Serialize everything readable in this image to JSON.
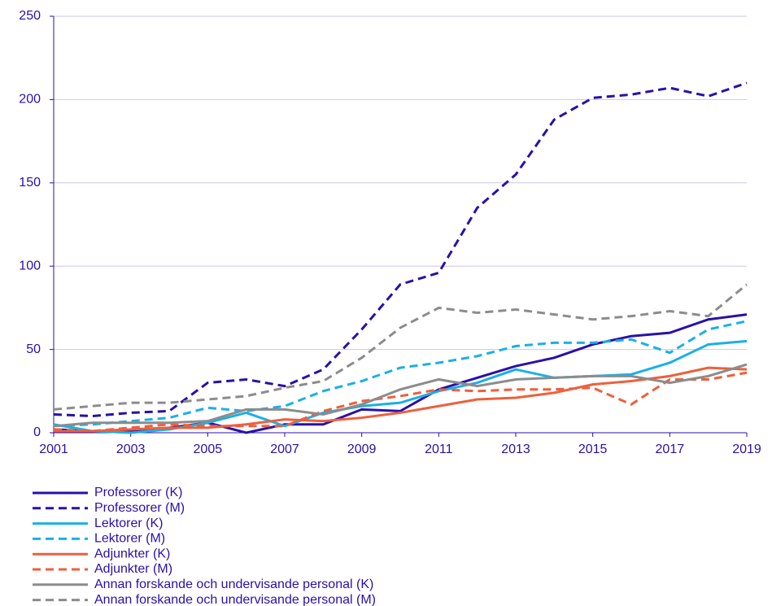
{
  "chart_data": {
    "type": "line",
    "x": [
      2001,
      2002,
      2003,
      2004,
      2005,
      2006,
      2007,
      2008,
      2009,
      2010,
      2011,
      2012,
      2013,
      2014,
      2015,
      2016,
      2017,
      2018,
      2019
    ],
    "xlim": [
      2001,
      2019
    ],
    "xticks": [
      2001,
      2003,
      2005,
      2007,
      2009,
      2011,
      2013,
      2015,
      2017,
      2019
    ],
    "ylim": [
      0,
      250
    ],
    "yticks": [
      0,
      50,
      100,
      150,
      200,
      250
    ],
    "grid": true,
    "legend": "bottom",
    "series": [
      {
        "name": "Professorer (K)",
        "color": "#2a10a8",
        "dashed": false,
        "values": [
          2,
          1,
          1,
          3,
          6,
          0,
          5,
          5,
          14,
          13,
          26,
          33,
          40,
          45,
          53,
          58,
          60,
          68,
          71
        ]
      },
      {
        "name": "Professorer (M)",
        "color": "#2a10a8",
        "dashed": true,
        "values": [
          11,
          10,
          12,
          13,
          30,
          32,
          28,
          38,
          62,
          89,
          96,
          135,
          155,
          188,
          201,
          203,
          207,
          202,
          210
        ]
      },
      {
        "name": "Lektorer (K)",
        "color": "#1ab0e6",
        "dashed": false,
        "values": [
          5,
          1,
          0,
          2,
          6,
          12,
          4,
          12,
          16,
          18,
          25,
          30,
          38,
          33,
          34,
          35,
          42,
          53,
          55
        ]
      },
      {
        "name": "Lektorer (M)",
        "color": "#1ab0e6",
        "dashed": true,
        "values": [
          4,
          5,
          7,
          9,
          15,
          13,
          16,
          25,
          31,
          39,
          42,
          46,
          52,
          54,
          54,
          56,
          48,
          62,
          67
        ]
      },
      {
        "name": "Adjunkter (K)",
        "color": "#ee5f3c",
        "dashed": false,
        "values": [
          1,
          1,
          2,
          3,
          3,
          5,
          8,
          7,
          9,
          12,
          16,
          20,
          21,
          24,
          29,
          31,
          34,
          39,
          38
        ]
      },
      {
        "name": "Adjunkter (M)",
        "color": "#ee5f3c",
        "dashed": true,
        "values": [
          2,
          1,
          3,
          5,
          4,
          4,
          4,
          13,
          19,
          22,
          26,
          25,
          26,
          26,
          27,
          17,
          32,
          32,
          36
        ]
      },
      {
        "name": "Annan forskande och undervisande personal (K)",
        "color": "#8c8c8c",
        "dashed": false,
        "values": [
          4,
          6,
          6,
          6,
          7,
          14,
          14,
          11,
          17,
          26,
          32,
          28,
          32,
          33,
          34,
          34,
          30,
          34,
          41
        ]
      },
      {
        "name": "Annan forskande och undervisande personal (M)",
        "color": "#8c8c8c",
        "dashed": true,
        "values": [
          14,
          16,
          18,
          18,
          20,
          22,
          27,
          31,
          45,
          63,
          75,
          72,
          74,
          71,
          68,
          70,
          73,
          70,
          89
        ]
      }
    ]
  }
}
